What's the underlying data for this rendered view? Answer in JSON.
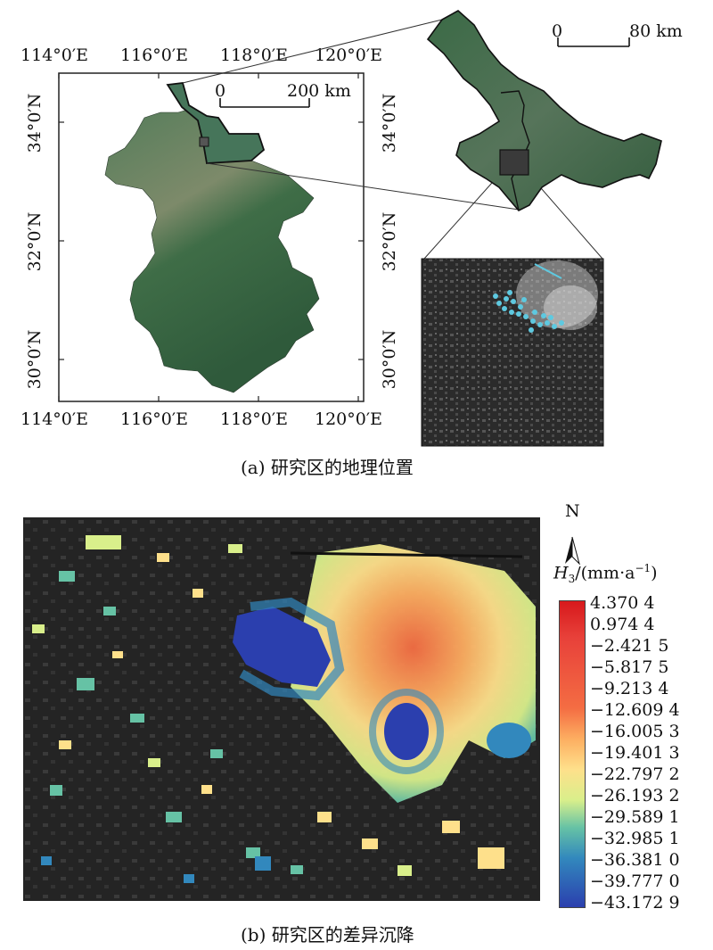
{
  "panel_a": {
    "caption": "(a) 研究区的地理位置",
    "top_ticks": [
      "114°0′E",
      "116°0′E",
      "118°0′E",
      "120°0′E"
    ],
    "bottom_ticks": [
      "114°0′E",
      "116°0′E",
      "118°0′E",
      "120°0′E"
    ],
    "left_ticks": [
      "34°0′N",
      "32°0′N",
      "30°0′N"
    ],
    "right_ticks": [
      "34°0′N",
      "32°0′N",
      "30°0′N"
    ],
    "scale_main": {
      "start": "0",
      "end": "200 km"
    },
    "scale_inset": {
      "start": "0",
      "end": "80 km"
    }
  },
  "panel_b": {
    "caption": "(b) 研究区的差异沉降",
    "north_label": "N",
    "legend_title_symbol": "H",
    "legend_title_sub": "3",
    "legend_title_unit": "/(mm·a",
    "legend_title_sup": "−1",
    "legend_title_close": ")",
    "legend_values": [
      "4.370 4",
      "0.974 4",
      "−2.421 5",
      "−5.817 5",
      "−9.213 4",
      "−12.609 4",
      "−16.005 3",
      "−19.401 3",
      "−22.797 2",
      "−26.193 2",
      "−29.589 1",
      "−32.985 1",
      "−36.381 0",
      "−39.777 0",
      "−43.172 9"
    ]
  },
  "colors": {
    "map_green": "#3e6b4b",
    "sar_dark": "#2a2a2a",
    "ramp": [
      "#d7191c",
      "#f46d43",
      "#fdae61",
      "#fee08b",
      "#d9ef8b",
      "#66c2a5",
      "#3288bd",
      "#2b3fae"
    ]
  }
}
